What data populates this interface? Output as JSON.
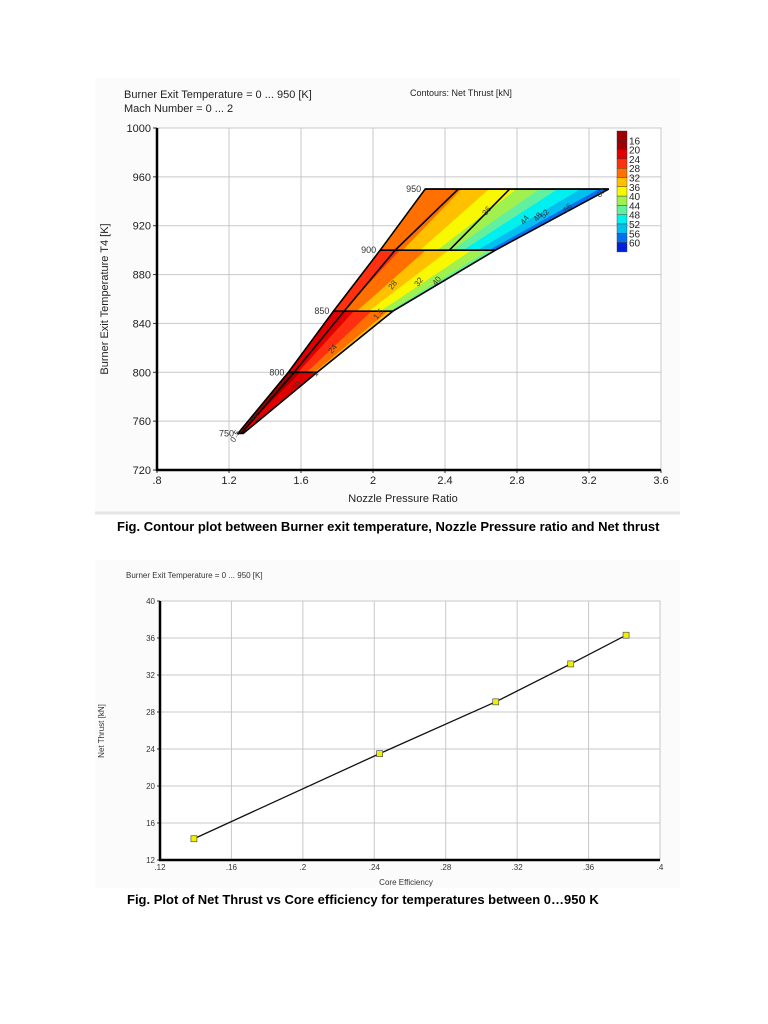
{
  "figures": [
    {
      "caption": "Fig. Contour plot between Burner exit temperature, Nozzle Pressure ratio and Net thrust"
    },
    {
      "caption": "Fig. Plot of Net Thrust vs Core efficiency for temperatures between 0…950 K"
    }
  ],
  "chart_data": [
    {
      "type": "heatmap",
      "subtype": "contour",
      "title_lines": [
        "Burner Exit Temperature = 0 ... 950 [K]",
        "Mach Number = 0 ... 2"
      ],
      "contour_title": "Contours: Net Thrust [kN]",
      "xlabel": "Nozzle Pressure Ratio",
      "ylabel": "Burner Exit Temperature T4 [K]",
      "xlim": [
        0.8,
        3.6
      ],
      "ylim": [
        720,
        1000
      ],
      "xticks": [
        ".8",
        "1.2",
        "1.6",
        "2",
        "2.4",
        "2.8",
        "3.2",
        "3.6"
      ],
      "yticks": [
        "720",
        "760",
        "800",
        "840",
        "880",
        "920",
        "960",
        "1000"
      ],
      "grid": true,
      "legend": {
        "position": "right-top",
        "levels": [
          "16",
          "20",
          "24",
          "28",
          "32",
          "36",
          "40",
          "44",
          "48",
          "52",
          "56",
          "60"
        ],
        "colors": [
          "#a00000",
          "#e00000",
          "#ff3010",
          "#ff7000",
          "#ffc000",
          "#f8f800",
          "#a0f050",
          "#60f0a0",
          "#00f0f0",
          "#00c0f0",
          "#0070f0",
          "#0020e0"
        ]
      },
      "temperature_lines": [
        {
          "label": "750",
          "T4": 750,
          "npr_range": [
            1.25,
            1.28
          ]
        },
        {
          "label": "800",
          "T4": 800,
          "npr_range": [
            1.53,
            1.69
          ]
        },
        {
          "label": "850",
          "T4": 850,
          "npr_range": [
            1.78,
            2.11
          ]
        },
        {
          "label": "900",
          "T4": 900,
          "npr_range": [
            2.04,
            2.68
          ]
        },
        {
          "label": "950",
          "T4": 950,
          "npr_range": [
            2.29,
            3.31
          ]
        }
      ],
      "mach_labels": [
        "0",
        ".5",
        "1",
        "1.5",
        "2"
      ],
      "contour_labels": [
        "16",
        "20",
        "24",
        "28",
        "32",
        "36",
        "40",
        "44",
        "48",
        "52",
        "56",
        "60"
      ],
      "boundary_npr_T4": [
        [
          1.25,
          750
        ],
        [
          1.53,
          800
        ],
        [
          1.78,
          850
        ],
        [
          2.04,
          900
        ],
        [
          2.29,
          950
        ],
        [
          3.31,
          950
        ],
        [
          2.68,
          900
        ],
        [
          2.11,
          850
        ],
        [
          1.69,
          800
        ],
        [
          1.28,
          750
        ]
      ]
    },
    {
      "type": "line",
      "title": "Burner Exit Temperature = 0 ... 950 [K]",
      "xlabel": "Core Efficiency",
      "ylabel": "Net Thrust [kN]",
      "xlim": [
        0.12,
        0.4
      ],
      "ylim": [
        12,
        40
      ],
      "xticks": [
        ".12",
        ".16",
        ".2",
        ".24",
        ".28",
        ".32",
        ".36",
        ".4"
      ],
      "yticks": [
        "12",
        "16",
        "20",
        "24",
        "28",
        "32",
        "36",
        "40"
      ],
      "grid": true,
      "series": [
        {
          "name": "Net Thrust",
          "marker": "square",
          "marker_color": "#f0f000",
          "x": [
            0.139,
            0.243,
            0.308,
            0.35,
            0.381
          ],
          "y": [
            14.3,
            23.5,
            29.1,
            33.2,
            36.3
          ]
        }
      ]
    }
  ]
}
